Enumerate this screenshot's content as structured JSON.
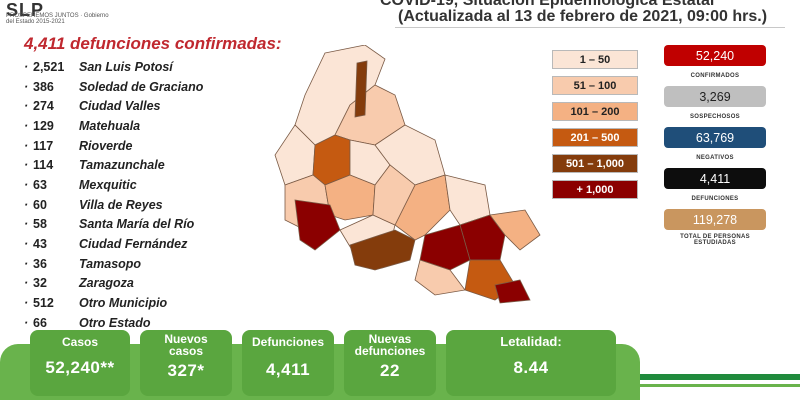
{
  "header": {
    "logo_text": "SLP",
    "logo_sub": "PROSPEREMOS JUNTOS · Gobierno del Estado 2015-2021",
    "title": "COVID-19, Situación Epidemiológica Estatal",
    "subtitle": "(Actualizada al 13 de febrero de 2021, 09:00 hrs.)"
  },
  "deaths": {
    "title": "4,411 defunciones confirmadas:",
    "items": [
      {
        "count": "2,521",
        "place": "San Luis Potosí"
      },
      {
        "count": "386",
        "place": "Soledad de Graciano"
      },
      {
        "count": "274",
        "place": "Ciudad Valles"
      },
      {
        "count": "129",
        "place": "Matehuala"
      },
      {
        "count": "117",
        "place": "Rioverde"
      },
      {
        "count": "114",
        "place": "Tamazunchale"
      },
      {
        "count": "63",
        "place": "Mexquitic"
      },
      {
        "count": "60",
        "place": "Villa de Reyes"
      },
      {
        "count": "58",
        "place": "Santa María del Río"
      },
      {
        "count": "43",
        "place": "Ciudad Fernández"
      },
      {
        "count": "36",
        "place": "Tamasopo"
      },
      {
        "count": "32",
        "place": "Zaragoza"
      },
      {
        "count": "512",
        "place": "Otro Municipio"
      },
      {
        "count": "66",
        "place": "Otro Estado"
      }
    ]
  },
  "legend": [
    {
      "label": "1 – 50",
      "color": "#fbe5d6",
      "text_color": "#222222"
    },
    {
      "label": "51 – 100",
      "color": "#f8cbad",
      "text_color": "#222222"
    },
    {
      "label": "101 – 200",
      "color": "#f4b183",
      "text_color": "#222222"
    },
    {
      "label": "201 – 500",
      "color": "#c55a11",
      "text_color": "#ffffff"
    },
    {
      "label": "501 – 1,000",
      "color": "#843c0c",
      "text_color": "#ffffff"
    },
    {
      "label": "+ 1,000",
      "color": "#8b0000",
      "text_color": "#ffffff"
    }
  ],
  "stats": [
    {
      "value": "52,240",
      "label": "CONFIRMADOS",
      "color": "#c00000",
      "text_color": "#ffffff"
    },
    {
      "value": "3,269",
      "label": "SOSPECHOSOS",
      "color": "#bfbfbf",
      "text_color": "#222222"
    },
    {
      "value": "63,769",
      "label": "NEGATIVOS",
      "color": "#1f4e79",
      "text_color": "#ffffff"
    },
    {
      "value": "4,411",
      "label": "DEFUNCIONES",
      "color": "#0d0d0d",
      "text_color": "#ffffff"
    },
    {
      "value": "119,278",
      "label": "TOTAL DE PERSONAS ESTUDIADAS",
      "color": "#c9965f",
      "text_color": "#ffffff"
    }
  ],
  "summary": {
    "casos_label": "Casos",
    "casos_value": "52,240**",
    "nuevos_label": "Nuevos casos",
    "nuevos_value": "327*",
    "defunciones_label": "Defunciones",
    "defunciones_value": "4,411",
    "nuevas_def_label": "Nuevas defunciones",
    "nuevas_def_value": "22",
    "letalidad_label": "Letalidad:",
    "letalidad_value": "8.44"
  }
}
